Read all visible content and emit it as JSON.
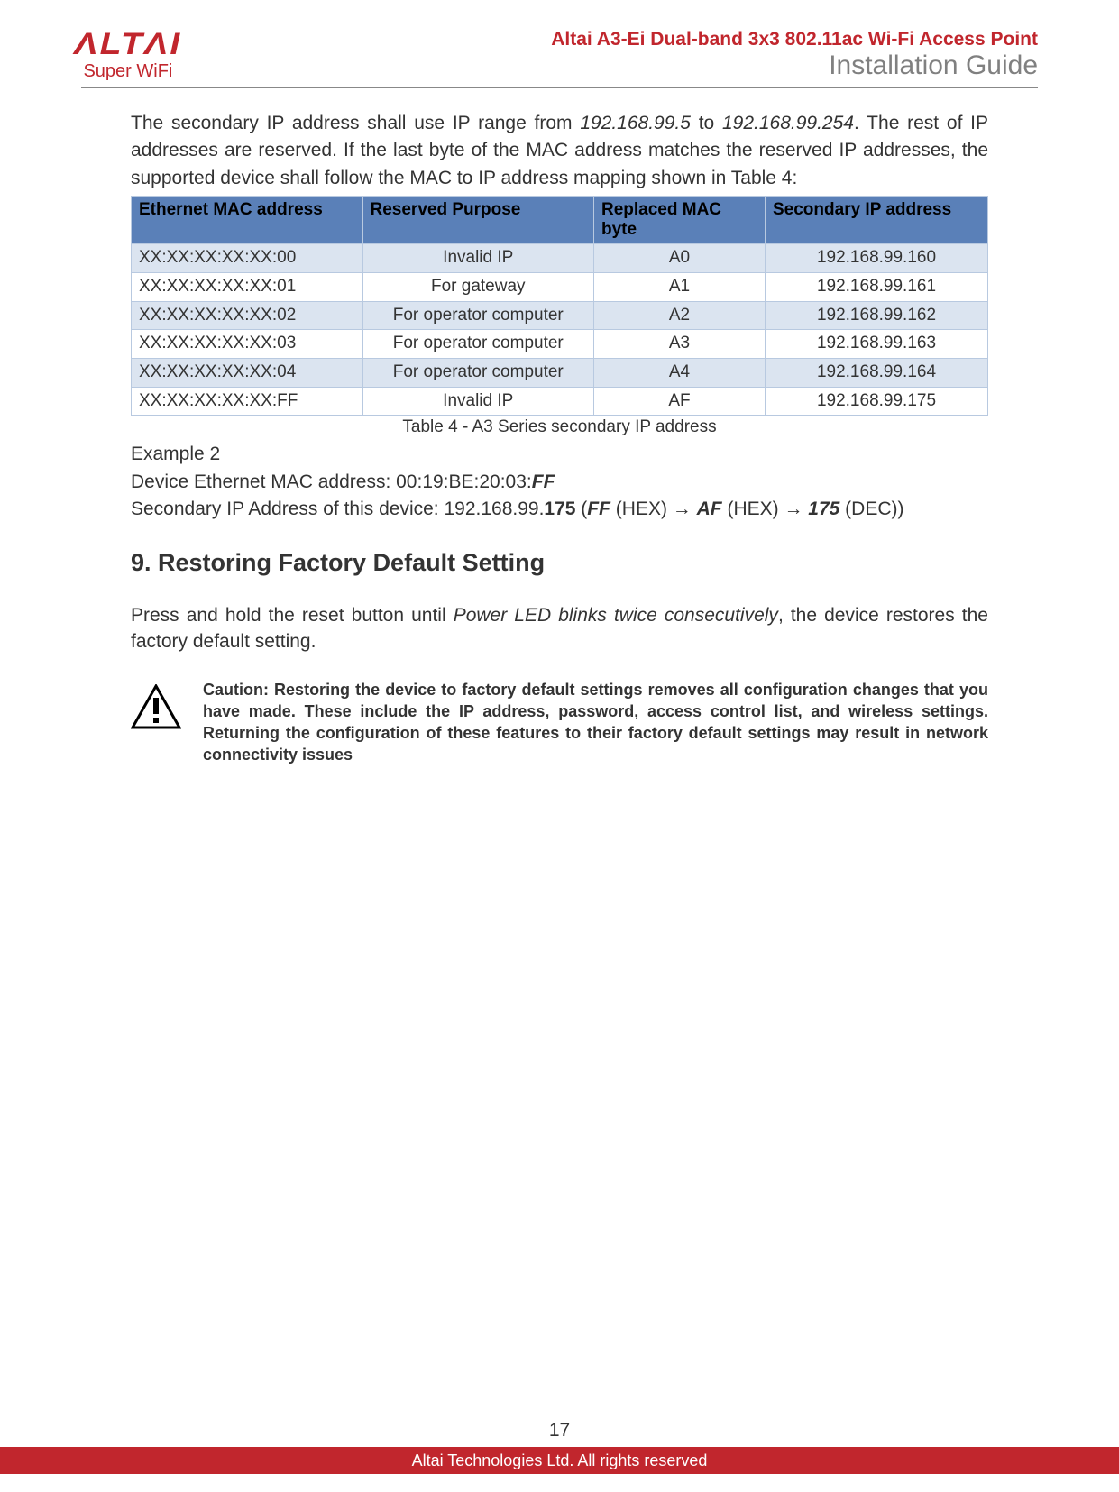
{
  "header": {
    "logo_main": "ΛLTΛI",
    "logo_sub": "Super WiFi",
    "title_red": "Altai A3-Ei Dual-band 3x3 802.11ac Wi-Fi Access Point",
    "title_grey": "Installation Guide"
  },
  "intro": {
    "pre": "The secondary IP address shall use IP range from ",
    "range1": "192.168.99.5",
    "mid1": " to ",
    "range2": "192.168.99.254",
    "post": ". The rest of IP addresses are reserved. If the last byte of the MAC address matches the reserved IP addresses, the supported device shall follow the MAC to IP address mapping shown in Table 4:"
  },
  "table": {
    "columns": [
      "Ethernet MAC address",
      "Reserved Purpose",
      "Replaced MAC byte",
      "Secondary IP address"
    ],
    "col_widths": [
      "27%",
      "27%",
      "20%",
      "26%"
    ],
    "header_bg": "#5a80b8",
    "row_colors": {
      "odd": "#dbe4f0",
      "even": "#ffffff"
    },
    "border_color": "#b8c9e0",
    "rows": [
      [
        "XX:XX:XX:XX:XX:00",
        "Invalid IP",
        "A0",
        "192.168.99.160"
      ],
      [
        "XX:XX:XX:XX:XX:01",
        "For gateway",
        "A1",
        "192.168.99.161"
      ],
      [
        "XX:XX:XX:XX:XX:02",
        "For operator computer",
        "A2",
        "192.168.99.162"
      ],
      [
        "XX:XX:XX:XX:XX:03",
        "For operator computer",
        "A3",
        "192.168.99.163"
      ],
      [
        "XX:XX:XX:XX:XX:04",
        "For operator computer",
        "A4",
        "192.168.99.164"
      ],
      [
        "XX:XX:XX:XX:XX:FF",
        "Invalid IP",
        "AF",
        "192.168.99.175"
      ]
    ],
    "caption": "Table 4 - A3 Series secondary IP address"
  },
  "example": {
    "title": "Example 2",
    "l1_pre": "Device Ethernet MAC address: 00:19:BE:20:03:",
    "l1_b": "FF",
    "l2_pre": "Secondary IP Address of this device: 192.168.99.",
    "l2_b1": "175",
    "l2_mid1": " (",
    "l2_bi1": "FF",
    "l2_mid2": " (HEX) → ",
    "l2_bi2": "AF",
    "l2_mid3": " (HEX) → ",
    "l2_bi3": "175",
    "l2_end": " (DEC))"
  },
  "section": {
    "heading": "9. Restoring Factory Default Setting",
    "p_pre": "Press and hold the reset button until ",
    "p_ital": "Power LED blinks twice consecutively",
    "p_post": ", the device restores the factory default setting."
  },
  "caution": {
    "text": "Caution: Restoring the device to factory default settings removes all configuration changes that you have made. These include the IP address, password, access control list, and wireless settings. Returning the configuration of these features to their factory default settings may result in network connectivity issues"
  },
  "footer": {
    "page_num": "17",
    "copyright": "Altai Technologies Ltd. All rights reserved"
  },
  "colors": {
    "brand_red": "#c1262d",
    "grey": "#808080",
    "text": "#333333"
  }
}
